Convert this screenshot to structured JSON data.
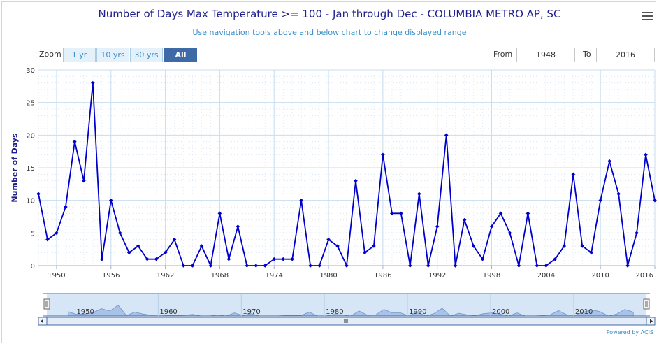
{
  "title": "Number of Days Max Temperature >= 100 - Jan through Dec - COLUMBIA METRO AP, SC",
  "subtitle": "Use navigation tools above and below chart to change displayed range",
  "menu_icon": "hamburger-menu-icon",
  "zoom": {
    "label": "Zoom",
    "buttons": [
      "1 yr",
      "10 yrs",
      "30 yrs",
      "All"
    ],
    "active": "All"
  },
  "range": {
    "from_label": "From",
    "from_value": "1948",
    "to_label": "To",
    "to_value": "2016"
  },
  "powered_by": "Powered by ACIS",
  "colors": {
    "line": "#0000cc",
    "grid": "#c8def0",
    "navigator_fill": "#a9c3e8",
    "selector": "#d6e6f7"
  },
  "chart_data": {
    "type": "line",
    "ylabel": "Number of Days",
    "ylim": [
      0,
      30
    ],
    "yticks": [
      0,
      5,
      10,
      15,
      20,
      25,
      30
    ],
    "xlim": [
      1948,
      2016
    ],
    "xticks": [
      1950,
      1956,
      1962,
      1968,
      1974,
      1980,
      1986,
      1992,
      1998,
      2004,
      2010,
      2016
    ],
    "grid": true,
    "x": [
      1948,
      1949,
      1950,
      1951,
      1952,
      1953,
      1954,
      1955,
      1956,
      1957,
      1958,
      1959,
      1960,
      1961,
      1962,
      1963,
      1964,
      1965,
      1966,
      1967,
      1968,
      1969,
      1970,
      1971,
      1972,
      1973,
      1974,
      1975,
      1976,
      1977,
      1978,
      1979,
      1980,
      1981,
      1982,
      1983,
      1984,
      1985,
      1986,
      1987,
      1988,
      1989,
      1990,
      1991,
      1992,
      1993,
      1994,
      1995,
      1996,
      1997,
      1998,
      1999,
      2000,
      2001,
      2002,
      2003,
      2004,
      2005,
      2006,
      2007,
      2008,
      2009,
      2010,
      2011,
      2012,
      2013,
      2014,
      2015,
      2016
    ],
    "series": [
      {
        "values": [
          11,
          4,
          5,
          9,
          19,
          13,
          28,
          1,
          10,
          5,
          2,
          3,
          1,
          1,
          2,
          4,
          0,
          0,
          3,
          0,
          8,
          1,
          6,
          0,
          0,
          0,
          1,
          1,
          1,
          10,
          0,
          0,
          4,
          3,
          0,
          13,
          2,
          3,
          17,
          8,
          8,
          0,
          11,
          0,
          6,
          20,
          0,
          7,
          3,
          1,
          6,
          8,
          5,
          0,
          8,
          0,
          0,
          1,
          3,
          14,
          3,
          2,
          10,
          16,
          11,
          0,
          5,
          17,
          10
        ]
      }
    ],
    "navigator": {
      "ticks": [
        "1950",
        "1960",
        "1970",
        "1980",
        "1990",
        "2000",
        "2010"
      ]
    }
  }
}
